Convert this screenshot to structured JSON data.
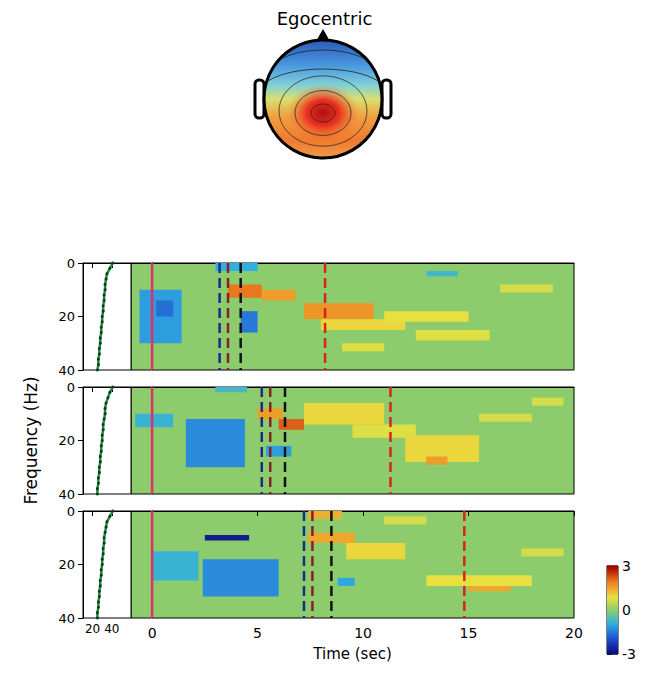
{
  "chart_data": {
    "type": "heatmap",
    "title": "Egocentric",
    "xlabel": "Time (sec)",
    "ylabel": "Frequency (Hz)",
    "xlim": [
      -1,
      20
    ],
    "xticks": [
      0,
      5,
      10,
      15,
      20
    ],
    "ylim": [
      0,
      40
    ],
    "yticks": [
      0,
      20,
      40
    ],
    "spectrum_xlim": [
      10,
      60
    ],
    "spectrum_xticks": [
      20,
      40
    ],
    "colorbar": {
      "lim": [
        -3,
        3
      ],
      "ticks": [
        -3,
        0,
        3
      ]
    },
    "panels": [
      {
        "spectrum": {
          "color": "#1e8c3c",
          "marker": "circle",
          "line_style": "solid",
          "freq": [
            0,
            2,
            4,
            6,
            8,
            10,
            12,
            14,
            16,
            18,
            20,
            22,
            24,
            26,
            28,
            30,
            32,
            34,
            36,
            38,
            40
          ],
          "values": [
            41,
            38,
            35,
            34,
            33,
            33,
            32,
            32,
            31,
            31,
            30,
            30,
            29,
            29,
            28,
            28,
            27,
            27,
            26,
            26,
            25
          ]
        },
        "events": [
          {
            "time": 0,
            "color": "#e0306a",
            "line_style": "solid"
          },
          {
            "time": 3.2,
            "color": "#1c2a8c",
            "line_style": "dashed"
          },
          {
            "time": 3.6,
            "color": "#8b2020",
            "line_style": "dashed"
          },
          {
            "time": 4.2,
            "color": "#111111",
            "line_style": "dashed"
          },
          {
            "time": 8.2,
            "color": "#e02020",
            "line_style": "dashed"
          }
        ],
        "cells": [
          [
            -0.6,
            1.4,
            10,
            30,
            -1.1
          ],
          [
            0.2,
            1.0,
            14,
            20,
            -1.6
          ],
          [
            4.2,
            5.0,
            18,
            26,
            -1.5
          ],
          [
            3.0,
            5.0,
            0,
            3,
            -0.9
          ],
          [
            3.6,
            5.2,
            8,
            13,
            2.0
          ],
          [
            5.2,
            6.8,
            10,
            14,
            1.6
          ],
          [
            7.2,
            10.5,
            15,
            21,
            1.7
          ],
          [
            8.0,
            12.0,
            21,
            25,
            1.0
          ],
          [
            11.0,
            15.0,
            18,
            22,
            0.9
          ],
          [
            12.5,
            16.0,
            25,
            29,
            0.8
          ],
          [
            16.5,
            19.0,
            8,
            11,
            0.7
          ],
          [
            13.0,
            14.5,
            3,
            5,
            -0.7
          ],
          [
            9.0,
            11.0,
            30,
            33,
            0.8
          ]
        ]
      },
      {
        "spectrum": {
          "color": "#1e8c3c",
          "marker": "circle",
          "line_style": "solid",
          "freq": [
            0,
            2,
            4,
            6,
            8,
            10,
            12,
            14,
            16,
            18,
            20,
            22,
            24,
            26,
            28,
            30,
            32,
            34,
            36,
            38,
            40
          ],
          "values": [
            41,
            38,
            36,
            34,
            33,
            33,
            32,
            31,
            31,
            30,
            30,
            29,
            29,
            28,
            28,
            27,
            27,
            26,
            26,
            25,
            25
          ]
        },
        "events": [
          {
            "time": 0,
            "color": "#e0306a",
            "line_style": "solid"
          },
          {
            "time": 5.2,
            "color": "#1c2a8c",
            "line_style": "dashed"
          },
          {
            "time": 5.6,
            "color": "#8b2020",
            "line_style": "dashed"
          },
          {
            "time": 6.3,
            "color": "#111111",
            "line_style": "dashed"
          },
          {
            "time": 11.3,
            "color": "#e02020",
            "line_style": "dashed"
          }
        ],
        "cells": [
          [
            -0.8,
            1.0,
            10,
            15,
            -0.8
          ],
          [
            1.6,
            4.4,
            12,
            30,
            -1.3
          ],
          [
            5.4,
            6.6,
            22,
            26,
            -1.1
          ],
          [
            5.0,
            6.2,
            8,
            12,
            1.6
          ],
          [
            6.0,
            7.2,
            12,
            16,
            2.2
          ],
          [
            7.2,
            11.0,
            6,
            14,
            1.0
          ],
          [
            9.5,
            12.5,
            14,
            19,
            0.8
          ],
          [
            12.0,
            15.5,
            18,
            28,
            1.0
          ],
          [
            13.0,
            14.0,
            26,
            29,
            1.6
          ],
          [
            15.5,
            18.0,
            10,
            13,
            0.7
          ],
          [
            18.0,
            19.5,
            4,
            7,
            0.7
          ],
          [
            3.0,
            4.5,
            0,
            2,
            -0.7
          ]
        ]
      },
      {
        "spectrum": {
          "color": "#1e8c3c",
          "marker": "circle",
          "line_style": "solid",
          "freq": [
            0,
            2,
            4,
            6,
            8,
            10,
            12,
            14,
            16,
            18,
            20,
            22,
            24,
            26,
            28,
            30,
            32,
            34,
            36,
            38,
            40
          ],
          "values": [
            41,
            38,
            35,
            34,
            33,
            32,
            32,
            31,
            31,
            30,
            30,
            29,
            29,
            28,
            28,
            27,
            27,
            26,
            26,
            25,
            25
          ]
        },
        "events": [
          {
            "time": 0,
            "color": "#e0306a",
            "line_style": "solid"
          },
          {
            "time": 7.2,
            "color": "#1c2a8c",
            "line_style": "dashed"
          },
          {
            "time": 7.6,
            "color": "#8b2020",
            "line_style": "dashed"
          },
          {
            "time": 8.5,
            "color": "#111111",
            "line_style": "dashed"
          },
          {
            "time": 14.8,
            "color": "#e02020",
            "line_style": "dashed"
          }
        ],
        "cells": [
          [
            0.0,
            2.2,
            15,
            26,
            -0.8
          ],
          [
            2.5,
            4.6,
            9,
            11,
            -2.7
          ],
          [
            2.4,
            6.0,
            18,
            32,
            -1.3
          ],
          [
            7.4,
            9.0,
            0,
            3,
            1.4
          ],
          [
            7.4,
            9.6,
            8,
            12,
            1.5
          ],
          [
            9.2,
            12.0,
            12,
            18,
            1.0
          ],
          [
            8.8,
            9.6,
            25,
            28,
            -1.0
          ],
          [
            13.0,
            18.0,
            24,
            28,
            0.9
          ],
          [
            15.0,
            17.0,
            28,
            30,
            1.5
          ],
          [
            11.0,
            13.0,
            2,
            5,
            0.7
          ],
          [
            17.5,
            19.5,
            14,
            17,
            0.7
          ]
        ]
      }
    ]
  }
}
